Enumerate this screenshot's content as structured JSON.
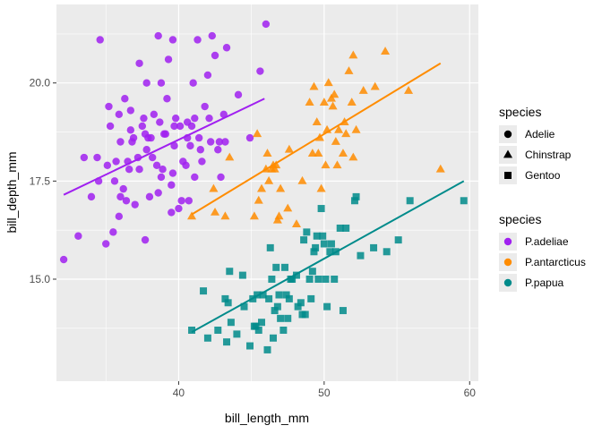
{
  "chart_data": {
    "type": "scatter",
    "xlabel": "bill_length_mm",
    "ylabel": "bill_depth_mm",
    "xlim": [
      31.6,
      60.6
    ],
    "ylim": [
      12.4,
      22.0
    ],
    "x_ticks": [
      40,
      50,
      60
    ],
    "y_ticks": [
      15.0,
      17.5,
      20.0
    ],
    "x_tick_labels": [
      "40",
      "50",
      "60"
    ],
    "y_tick_labels": [
      "15.0",
      "17.5",
      "20.0"
    ],
    "panel_background": "#ebebeb",
    "grid": true,
    "legend_position": "right",
    "legends": [
      {
        "title": "species",
        "entries": [
          {
            "label": "Adelie",
            "shape": "circle"
          },
          {
            "label": "Chinstrap",
            "shape": "triangle"
          },
          {
            "label": "Gentoo",
            "shape": "square"
          }
        ]
      },
      {
        "title": "species",
        "entries": [
          {
            "label": "P.adeliae",
            "color": "#a020f0"
          },
          {
            "label": "P.antarcticus",
            "color": "#ff8c00"
          },
          {
            "label": "P.papua",
            "color": "#008b8b"
          }
        ]
      }
    ],
    "series": [
      {
        "shape": "circle",
        "color": "#a020f0",
        "fit": [
          [
            32.1,
            17.15
          ],
          [
            45.9,
            19.6
          ]
        ],
        "points": [
          [
            32.1,
            15.5
          ],
          [
            33.1,
            16.1
          ],
          [
            33.5,
            18.1
          ],
          [
            34.0,
            17.1
          ],
          [
            34.4,
            18.1
          ],
          [
            34.6,
            21.1
          ],
          [
            34.5,
            17.5
          ],
          [
            35.0,
            15.9
          ],
          [
            35.1,
            17.9
          ],
          [
            35.2,
            19.4
          ],
          [
            35.3,
            18.9
          ],
          [
            35.5,
            16.2
          ],
          [
            35.6,
            17.5
          ],
          [
            35.7,
            18.0
          ],
          [
            35.9,
            16.6
          ],
          [
            35.9,
            19.2
          ],
          [
            36.0,
            18.5
          ],
          [
            36.0,
            17.1
          ],
          [
            36.2,
            17.3
          ],
          [
            36.3,
            19.6
          ],
          [
            36.4,
            17.0
          ],
          [
            36.5,
            18.0
          ],
          [
            36.6,
            17.8
          ],
          [
            36.7,
            19.3
          ],
          [
            36.7,
            18.8
          ],
          [
            36.8,
            18.5
          ],
          [
            36.9,
            18.6
          ],
          [
            37.0,
            16.9
          ],
          [
            37.2,
            18.1
          ],
          [
            37.3,
            20.5
          ],
          [
            37.3,
            17.8
          ],
          [
            37.5,
            18.9
          ],
          [
            37.6,
            19.1
          ],
          [
            37.7,
            18.7
          ],
          [
            37.7,
            16.0
          ],
          [
            37.8,
            18.3
          ],
          [
            37.8,
            20.0
          ],
          [
            37.9,
            18.6
          ],
          [
            38.0,
            17.1
          ],
          [
            38.1,
            18.6
          ],
          [
            38.2,
            18.1
          ],
          [
            38.3,
            19.2
          ],
          [
            38.5,
            17.9
          ],
          [
            38.6,
            21.2
          ],
          [
            38.6,
            17.2
          ],
          [
            38.7,
            19.0
          ],
          [
            38.8,
            17.6
          ],
          [
            38.8,
            20.0
          ],
          [
            38.9,
            17.8
          ],
          [
            39.0,
            18.7
          ],
          [
            39.1,
            18.7
          ],
          [
            39.2,
            19.6
          ],
          [
            39.3,
            20.6
          ],
          [
            39.5,
            17.4
          ],
          [
            39.5,
            16.7
          ],
          [
            39.6,
            17.7
          ],
          [
            39.6,
            21.1
          ],
          [
            39.7,
            18.4
          ],
          [
            39.7,
            18.9
          ],
          [
            39.8,
            19.1
          ],
          [
            40.0,
            16.8
          ],
          [
            40.1,
            18.9
          ],
          [
            40.2,
            17.0
          ],
          [
            40.3,
            18.0
          ],
          [
            40.5,
            17.9
          ],
          [
            40.6,
            18.6
          ],
          [
            40.6,
            19.0
          ],
          [
            40.7,
            17.0
          ],
          [
            40.8,
            18.4
          ],
          [
            40.9,
            18.9
          ],
          [
            41.0,
            20.0
          ],
          [
            41.1,
            17.6
          ],
          [
            41.1,
            19.1
          ],
          [
            41.3,
            21.1
          ],
          [
            41.4,
            18.6
          ],
          [
            41.5,
            18.3
          ],
          [
            41.6,
            18.0
          ],
          [
            41.8,
            19.4
          ],
          [
            42.0,
            20.2
          ],
          [
            42.1,
            19.1
          ],
          [
            42.2,
            18.5
          ],
          [
            42.3,
            21.2
          ],
          [
            42.5,
            20.7
          ],
          [
            42.7,
            18.3
          ],
          [
            42.8,
            18.5
          ],
          [
            42.9,
            17.6
          ],
          [
            43.1,
            19.2
          ],
          [
            43.2,
            18.5
          ],
          [
            43.3,
            20.9
          ],
          [
            44.1,
            19.7
          ],
          [
            44.9,
            18.6
          ],
          [
            45.6,
            20.3
          ],
          [
            46.0,
            21.5
          ]
        ]
      },
      {
        "shape": "triangle",
        "color": "#ff8c00",
        "fit": [
          [
            40.9,
            16.65
          ],
          [
            58.0,
            20.5
          ]
        ],
        "points": [
          [
            40.9,
            16.6
          ],
          [
            42.4,
            17.3
          ],
          [
            42.5,
            16.7
          ],
          [
            43.2,
            16.6
          ],
          [
            43.5,
            18.1
          ],
          [
            45.2,
            16.6
          ],
          [
            45.4,
            18.7
          ],
          [
            45.5,
            17.0
          ],
          [
            45.7,
            17.3
          ],
          [
            46.0,
            17.8
          ],
          [
            46.1,
            18.2
          ],
          [
            46.2,
            17.5
          ],
          [
            46.4,
            17.8
          ],
          [
            46.5,
            17.9
          ],
          [
            46.6,
            17.8
          ],
          [
            46.7,
            17.9
          ],
          [
            46.8,
            16.5
          ],
          [
            46.9,
            16.6
          ],
          [
            47.0,
            17.3
          ],
          [
            47.5,
            16.8
          ],
          [
            47.6,
            18.3
          ],
          [
            48.1,
            16.4
          ],
          [
            48.5,
            17.5
          ],
          [
            49.0,
            19.5
          ],
          [
            49.2,
            18.2
          ],
          [
            49.3,
            19.9
          ],
          [
            49.5,
            19.0
          ],
          [
            49.6,
            18.2
          ],
          [
            49.7,
            18.6
          ],
          [
            49.8,
            17.3
          ],
          [
            50.0,
            19.5
          ],
          [
            50.1,
            17.9
          ],
          [
            50.2,
            18.8
          ],
          [
            50.3,
            20.0
          ],
          [
            50.5,
            19.6
          ],
          [
            50.6,
            19.4
          ],
          [
            50.7,
            19.7
          ],
          [
            50.8,
            18.5
          ],
          [
            50.9,
            17.9
          ],
          [
            51.0,
            18.8
          ],
          [
            51.3,
            18.2
          ],
          [
            51.4,
            19.0
          ],
          [
            51.5,
            18.7
          ],
          [
            51.7,
            20.3
          ],
          [
            51.9,
            19.5
          ],
          [
            52.0,
            20.7
          ],
          [
            52.0,
            18.1
          ],
          [
            52.2,
            18.8
          ],
          [
            52.7,
            19.8
          ],
          [
            53.5,
            19.9
          ],
          [
            54.2,
            20.8
          ],
          [
            55.8,
            19.8
          ],
          [
            58.0,
            17.8
          ]
        ]
      },
      {
        "shape": "square",
        "color": "#008b8b",
        "fit": [
          [
            40.9,
            13.65
          ],
          [
            59.6,
            17.5
          ]
        ],
        "points": [
          [
            40.9,
            13.7
          ],
          [
            41.7,
            14.7
          ],
          [
            42.0,
            13.5
          ],
          [
            42.7,
            13.7
          ],
          [
            43.2,
            14.5
          ],
          [
            43.3,
            13.4
          ],
          [
            43.4,
            14.4
          ],
          [
            43.5,
            15.2
          ],
          [
            43.6,
            13.9
          ],
          [
            44.0,
            13.6
          ],
          [
            44.4,
            15.1
          ],
          [
            44.5,
            14.3
          ],
          [
            44.9,
            13.3
          ],
          [
            45.1,
            14.5
          ],
          [
            45.2,
            13.8
          ],
          [
            45.3,
            13.8
          ],
          [
            45.4,
            14.6
          ],
          [
            45.5,
            13.7
          ],
          [
            45.7,
            13.9
          ],
          [
            45.8,
            14.6
          ],
          [
            46.1,
            13.2
          ],
          [
            46.2,
            14.5
          ],
          [
            46.3,
            15.8
          ],
          [
            46.4,
            15.0
          ],
          [
            46.5,
            13.5
          ],
          [
            46.6,
            14.2
          ],
          [
            46.7,
            15.3
          ],
          [
            46.8,
            14.3
          ],
          [
            46.9,
            14.6
          ],
          [
            47.0,
            14.0
          ],
          [
            47.2,
            13.7
          ],
          [
            47.3,
            15.3
          ],
          [
            47.4,
            14.6
          ],
          [
            47.5,
            14.0
          ],
          [
            47.6,
            14.5
          ],
          [
            47.7,
            15.0
          ],
          [
            47.8,
            15.0
          ],
          [
            48.1,
            15.1
          ],
          [
            48.2,
            14.3
          ],
          [
            48.4,
            14.4
          ],
          [
            48.5,
            14.1
          ],
          [
            48.6,
            16.0
          ],
          [
            48.7,
            14.1
          ],
          [
            48.8,
            16.2
          ],
          [
            49.0,
            15.0
          ],
          [
            49.1,
            14.5
          ],
          [
            49.2,
            15.2
          ],
          [
            49.3,
            15.7
          ],
          [
            49.4,
            15.8
          ],
          [
            49.5,
            16.1
          ],
          [
            49.6,
            15.0
          ],
          [
            49.8,
            16.8
          ],
          [
            49.9,
            16.1
          ],
          [
            50.0,
            15.9
          ],
          [
            50.1,
            15.0
          ],
          [
            50.2,
            14.3
          ],
          [
            50.4,
            15.7
          ],
          [
            50.5,
            15.9
          ],
          [
            50.7,
            15.0
          ],
          [
            50.8,
            15.7
          ],
          [
            51.1,
            16.3
          ],
          [
            51.3,
            14.2
          ],
          [
            51.5,
            16.3
          ],
          [
            52.1,
            17.0
          ],
          [
            52.2,
            17.1
          ],
          [
            52.5,
            15.6
          ],
          [
            53.4,
            15.8
          ],
          [
            54.3,
            15.7
          ],
          [
            55.1,
            16.0
          ],
          [
            55.9,
            17.0
          ],
          [
            59.6,
            17.0
          ]
        ]
      }
    ]
  }
}
